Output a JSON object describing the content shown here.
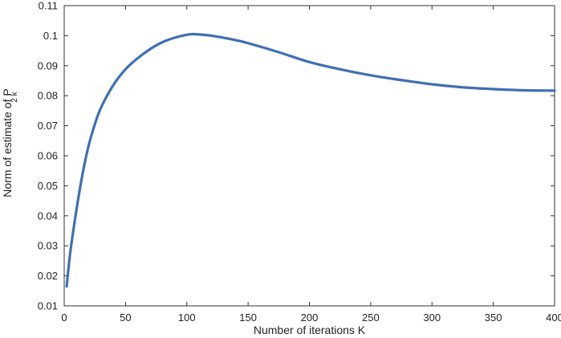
{
  "chart_data": {
    "type": "line",
    "title": "",
    "xlabel": "Number of iterations K",
    "ylabel": "Norm of estimate of P",
    "ylabel_subscript": "2 k",
    "xlim": [
      0,
      400
    ],
    "ylim": [
      0.01,
      0.11
    ],
    "xticks": [
      "0",
      "50",
      "100",
      "150",
      "200",
      "250",
      "300",
      "350",
      "400"
    ],
    "yticks": [
      "0.01",
      "0.02",
      "0.03",
      "0.04",
      "0.05",
      "0.06",
      "0.07",
      "0.08",
      "0.09",
      "0.1",
      "0.11"
    ],
    "grid": false,
    "legend": "none",
    "series": [
      {
        "color": "#3f6fb5",
        "x": [
          2,
          5,
          10,
          15,
          20,
          25,
          30,
          40,
          50,
          60,
          70,
          80,
          90,
          100,
          105,
          110,
          120,
          130,
          140,
          150,
          175,
          200,
          225,
          250,
          275,
          300,
          325,
          350,
          375,
          400
        ],
        "y": [
          0.0165,
          0.028,
          0.042,
          0.054,
          0.0635,
          0.0705,
          0.076,
          0.0835,
          0.0888,
          0.0925,
          0.0955,
          0.0978,
          0.0993,
          0.1003,
          0.1005,
          0.1004,
          0.1,
          0.0993,
          0.0985,
          0.0975,
          0.0945,
          0.0912,
          0.0888,
          0.0868,
          0.0852,
          0.0838,
          0.0828,
          0.0822,
          0.0818,
          0.0817
        ]
      }
    ]
  }
}
